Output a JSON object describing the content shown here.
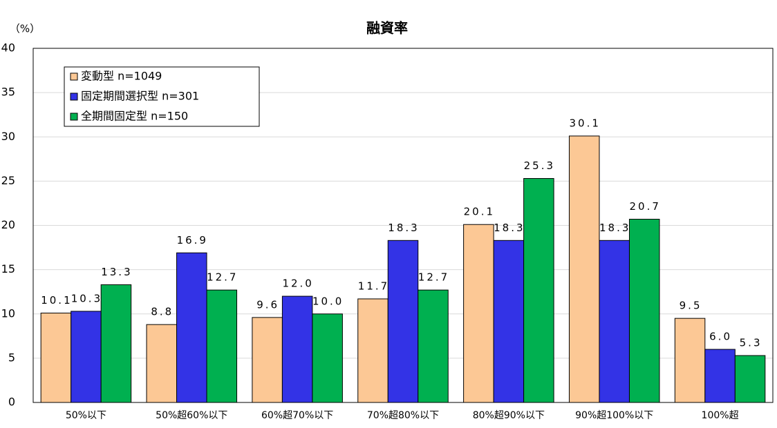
{
  "chart_data": {
    "type": "bar",
    "title": "融資率",
    "y_label": "（%）",
    "categories": [
      "50%以下",
      "50%超60%以下",
      "60%超70%以下",
      "70%超80%以下",
      "80%超90%以下",
      "90%超100%以下",
      "100%超"
    ],
    "series": [
      {
        "name": "変動型 n=1049",
        "color": "#fcc895",
        "values": [
          10.1,
          8.8,
          9.6,
          11.7,
          20.1,
          30.1,
          9.5
        ],
        "value_labels": [
          "10.1",
          "8.8",
          "9.6",
          "11.7",
          "20.1",
          "30.1",
          "9.5"
        ]
      },
      {
        "name": "固定期間選択型 n=301",
        "color": "#3333e6",
        "values": [
          10.3,
          16.9,
          12.0,
          18.3,
          18.3,
          18.3,
          6.0
        ],
        "value_labels": [
          "10.3",
          "16.9",
          "12.0",
          "18.3",
          "18.3",
          "18.3",
          "6.0"
        ]
      },
      {
        "name": "全期間固定型 n=150",
        "color": "#00b050",
        "values": [
          13.3,
          12.7,
          10.0,
          12.7,
          25.3,
          20.7,
          5.3
        ],
        "value_labels": [
          "13.3",
          "12.7",
          "10.0",
          "12.7",
          "25.3",
          "20.7",
          "5.3"
        ]
      }
    ],
    "ylim": [
      0,
      40
    ],
    "yticks": [
      0,
      5,
      10,
      15,
      20,
      25,
      30,
      35,
      40
    ],
    "grid": true,
    "legend": "upper left"
  }
}
